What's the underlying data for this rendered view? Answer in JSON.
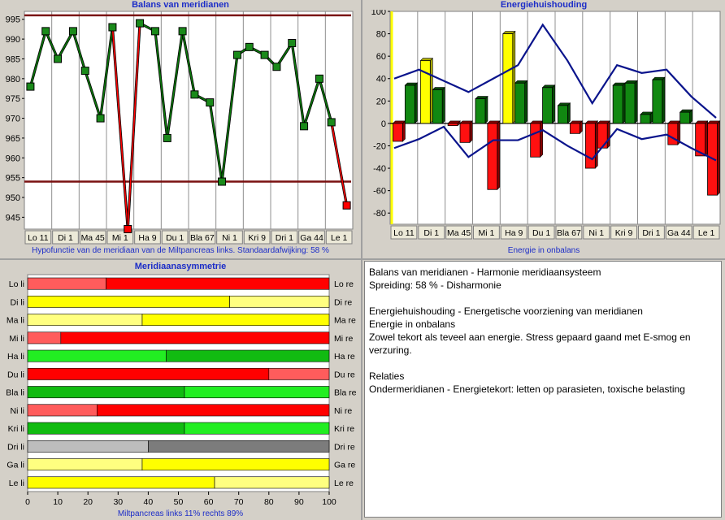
{
  "panel_balance": {
    "title": "Balans van meridianen",
    "caption": "Hypofunctie van de meridiaan van de Miltpancreas links. Standaardafwijking: 58 %"
  },
  "panel_energy": {
    "title": "Energiehuishouding",
    "caption": "Energie in onbalans"
  },
  "panel_asym": {
    "title": "Meridiaanasymmetrie",
    "caption": "Miltpancreas links 11%  rechts 89%"
  },
  "colors": {
    "green_dark": "#0a7a0a",
    "green_light": "#22d022",
    "red": "#ff0000",
    "red_light": "#ff5c5c",
    "yellow": "#ffff00",
    "gray_light": "#bdbdbd",
    "gray_dark": "#7c7c7c",
    "limit_line": "#7a1010",
    "curve_blue": "#0a148c",
    "title_blue": "#1c2dc8"
  },
  "chart_data": [
    {
      "type": "line",
      "title": "Balans van meridianen",
      "categories": [
        "Lo 11",
        "Di 1",
        "Ma 45",
        "Mi 1",
        "Ha 9",
        "Du 1",
        "Bla 67",
        "Ni 1",
        "Kri 9",
        "Dri 1",
        "Ga 44",
        "Le 1"
      ],
      "series": [
        {
          "values_left": [
            978,
            985,
            982,
            993,
            994,
            965,
            976,
            954,
            988,
            983,
            968,
            969
          ]
        },
        {
          "values_right": [
            992,
            992,
            970,
            942,
            992,
            992,
            974,
            986,
            986,
            989,
            980,
            948
          ]
        }
      ],
      "limits": [
        996,
        954
      ],
      "ylim": [
        942,
        997
      ],
      "yticks": [
        945,
        950,
        955,
        960,
        965,
        970,
        975,
        980,
        985,
        990,
        995
      ],
      "grid": "vertical"
    },
    {
      "type": "bar",
      "title": "Energiehuishouding",
      "xlabel": "Energie in onbalans",
      "categories": [
        "Lo 11",
        "Di 1",
        "Ma 45",
        "Mi 1",
        "Ha 9",
        "Du 1",
        "Bla 67",
        "Ni 1",
        "Kri 9",
        "Dri 1",
        "Ga 44",
        "Le 1"
      ],
      "values_left": [
        -16,
        56,
        -2,
        22,
        80,
        -30,
        16,
        -40,
        34,
        8,
        -19,
        -29
      ],
      "values_right": [
        34,
        30,
        -17,
        -59,
        36,
        32,
        -9,
        -22,
        36,
        39,
        10,
        -64
      ],
      "upper_curve": [
        40,
        48,
        38,
        28,
        40,
        52,
        88,
        56,
        18,
        52,
        45,
        48,
        24,
        5
      ],
      "lower_curve": [
        -22,
        -14,
        -3,
        -30,
        -15,
        -15,
        -6,
        -20,
        -32,
        -5,
        -14,
        -10,
        -22,
        -33
      ],
      "ylim": [
        -90,
        100
      ],
      "yticks": [
        100,
        80,
        60,
        40,
        20,
        0,
        -20,
        -40,
        -60,
        -80
      ]
    },
    {
      "type": "bar",
      "title": "Meridiaanasymmetrie",
      "xlabel": "Miltpancreas links 11%  rechts 89%",
      "rows": [
        {
          "left": "Lo li",
          "right": "Lo re",
          "split": 26,
          "colors": [
            "#ff5c5c",
            "#ff0000"
          ]
        },
        {
          "left": "Di li",
          "right": "Di re",
          "split": 67,
          "colors": [
            "#ffff00",
            "#ffff80"
          ]
        },
        {
          "left": "Ma li",
          "right": "Ma re",
          "split": 38,
          "colors": [
            "#ffff80",
            "#ffff00"
          ]
        },
        {
          "left": "Mi li",
          "right": "Mi re",
          "split": 11,
          "colors": [
            "#ff5c5c",
            "#ff0000"
          ]
        },
        {
          "left": "Ha li",
          "right": "Ha re",
          "split": 46,
          "colors": [
            "#22ee22",
            "#11bb11"
          ]
        },
        {
          "left": "Du li",
          "right": "Du re",
          "split": 80,
          "colors": [
            "#ff0000",
            "#ff5c5c"
          ]
        },
        {
          "left": "Bla li",
          "right": "Bla re",
          "split": 52,
          "colors": [
            "#11bb11",
            "#22ee22"
          ]
        },
        {
          "left": "Ni li",
          "right": "Ni re",
          "split": 23,
          "colors": [
            "#ff5c5c",
            "#ff0000"
          ]
        },
        {
          "left": "Kri li",
          "right": "Kri re",
          "split": 52,
          "colors": [
            "#11bb11",
            "#22ee22"
          ]
        },
        {
          "left": "Dri li",
          "right": "Dri re",
          "split": 40,
          "colors": [
            "#bdbdbd",
            "#7c7c7c"
          ]
        },
        {
          "left": "Ga li",
          "right": "Ga re",
          "split": 38,
          "colors": [
            "#ffff80",
            "#ffff00"
          ]
        },
        {
          "left": "Le li",
          "right": "Le re",
          "split": 62,
          "colors": [
            "#ffff00",
            "#ffff80"
          ]
        }
      ],
      "xlim": [
        0,
        100
      ],
      "xticks": [
        0,
        10,
        20,
        30,
        40,
        50,
        60,
        70,
        80,
        90,
        100
      ]
    }
  ],
  "text_panel": {
    "lines": [
      "Balans van meridianen - Harmonie meridiaansysteem",
      "Spreiding: 58 % - Disharmonie",
      "",
      "Energiehuishouding - Energetische voorziening van meridianen",
      "Energie in onbalans",
      "Zowel tekort als teveel aan energie. Stress gepaard gaand met E-smog en",
      "verzuring.",
      "",
      "Relaties",
      "Ondermeridianen - Energietekort: letten op parasieten, toxische belasting"
    ]
  }
}
